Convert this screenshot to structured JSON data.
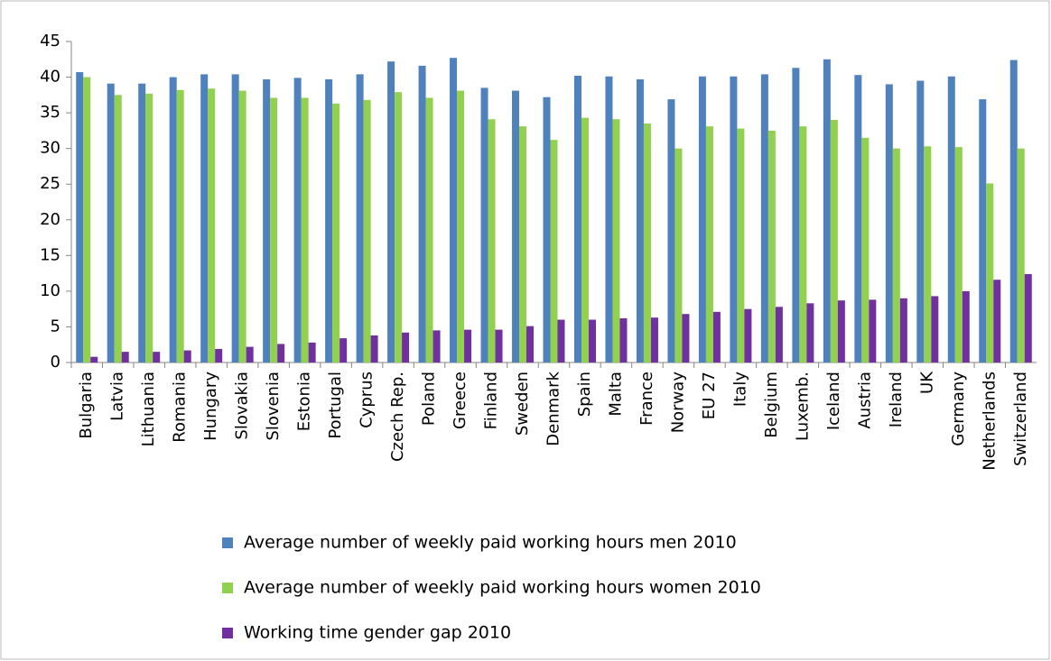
{
  "chart_data": {
    "type": "bar",
    "categories": [
      "Bulgaria",
      "Latvia",
      "Lithuania",
      "Romania",
      "Hungary",
      "Slovakia",
      "Slovenia",
      "Estonia",
      "Portugal",
      "Cyprus",
      "Czech Rep.",
      "Poland",
      "Greece",
      "Finland",
      "Sweden",
      "Denmark",
      "Spain",
      "Malta",
      "France",
      "Norway",
      "EU 27",
      "Italy",
      "Belgium",
      "Luxemb.",
      "Iceland",
      "Austria",
      "Ireland",
      "UK",
      "Germany",
      "Netherlands",
      "Switzerland"
    ],
    "series": [
      {
        "name": "Average number of weekly paid working hours men 2010",
        "color": "#4f81bd",
        "values": [
          40.7,
          39.1,
          39.1,
          40.0,
          40.4,
          40.4,
          39.7,
          39.9,
          39.7,
          40.4,
          42.2,
          41.6,
          42.7,
          38.5,
          38.1,
          37.2,
          40.2,
          40.1,
          39.7,
          36.9,
          40.1,
          40.1,
          40.4,
          41.3,
          42.5,
          40.3,
          39.0,
          39.5,
          40.1,
          36.9,
          42.4
        ]
      },
      {
        "name": "Average number of weekly paid working hours women 2010",
        "color": "#92d050",
        "values": [
          40.0,
          37.5,
          37.7,
          38.2,
          38.4,
          38.1,
          37.1,
          37.1,
          36.3,
          36.8,
          37.9,
          37.1,
          38.1,
          34.1,
          33.1,
          31.2,
          34.3,
          34.1,
          33.5,
          30.0,
          33.1,
          32.8,
          32.5,
          33.1,
          34.0,
          31.5,
          30.0,
          30.3,
          30.2,
          25.1,
          30.0
        ]
      },
      {
        "name": "Working time gender gap 2010",
        "color": "#7030a0",
        "values": [
          0.8,
          1.5,
          1.5,
          1.7,
          1.9,
          2.2,
          2.6,
          2.8,
          3.4,
          3.8,
          4.2,
          4.5,
          4.6,
          4.6,
          5.1,
          6.0,
          6.0,
          6.2,
          6.3,
          6.8,
          7.1,
          7.5,
          7.8,
          8.3,
          8.7,
          8.8,
          9.0,
          9.3,
          10.0,
          11.6,
          12.4
        ]
      }
    ],
    "ylim": [
      0,
      45
    ],
    "yticks": [
      0,
      5,
      10,
      15,
      20,
      25,
      30,
      35,
      40,
      45
    ],
    "grid": false,
    "legend": "bottom"
  }
}
